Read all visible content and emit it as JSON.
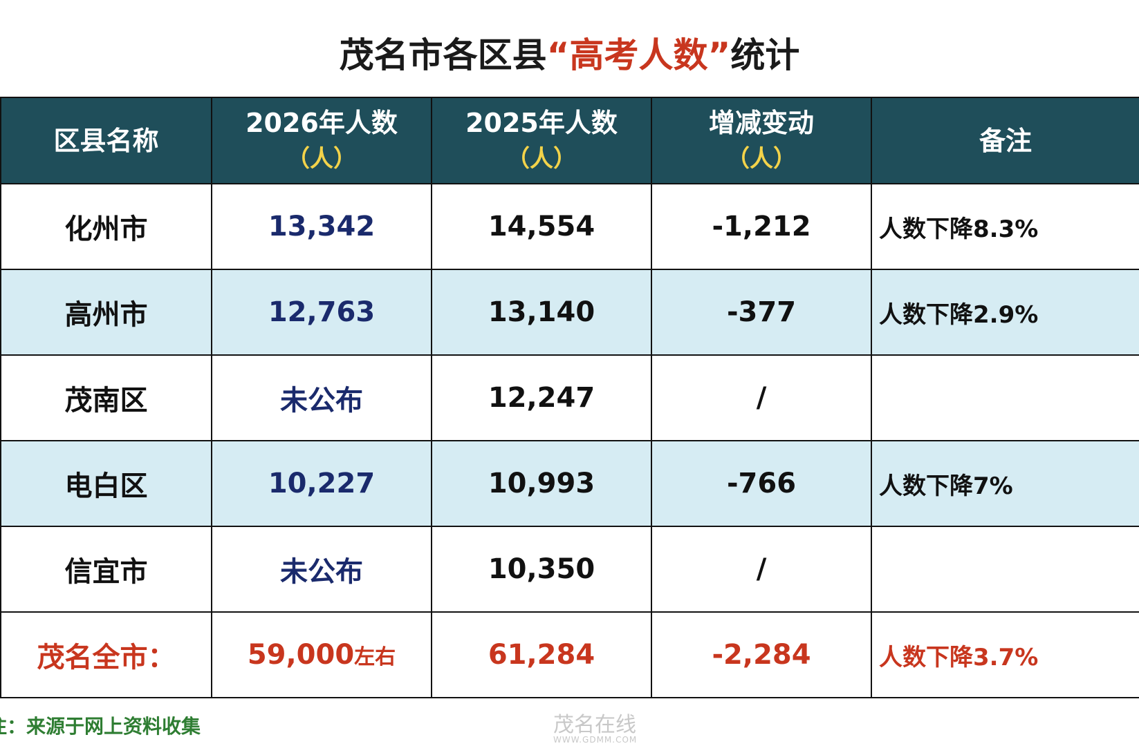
{
  "title": {
    "before": "茂名市各区县",
    "highlight": "“高考人数”",
    "after": "统计"
  },
  "table": {
    "header": [
      {
        "label": "区县名称"
      },
      {
        "label": "2026年人数",
        "unit": "（人）"
      },
      {
        "label": "2025年人数",
        "unit": "（人）"
      },
      {
        "label": "增减变动",
        "unit": "（人）"
      },
      {
        "label": "备注"
      }
    ],
    "rows": [
      [
        "化州市",
        "13,342",
        "14,554",
        "-1,212",
        "人数下降8.3%"
      ],
      [
        "高州市",
        "12,763",
        "13,140",
        "-377",
        "人数下降2.9%"
      ],
      [
        "茂南区",
        "未公布",
        "12,247",
        "/",
        null
      ],
      [
        "电白区",
        "10,227",
        "10,993",
        "-766",
        "人数下降7%"
      ],
      [
        "信宜市",
        "未公布",
        "10,350",
        "/",
        null
      ]
    ],
    "total": {
      "name": "茂名全市：",
      "count_2026": "59,000",
      "count_2026_note": "左右",
      "count_2025": "61,284",
      "change": "-2,284",
      "remark": "人数下降3.7%"
    }
  },
  "footnote": "注：来源于网上资料收集",
  "watermark": {
    "name": "茂名在线",
    "url": "WWW.GDMM.COM"
  }
}
